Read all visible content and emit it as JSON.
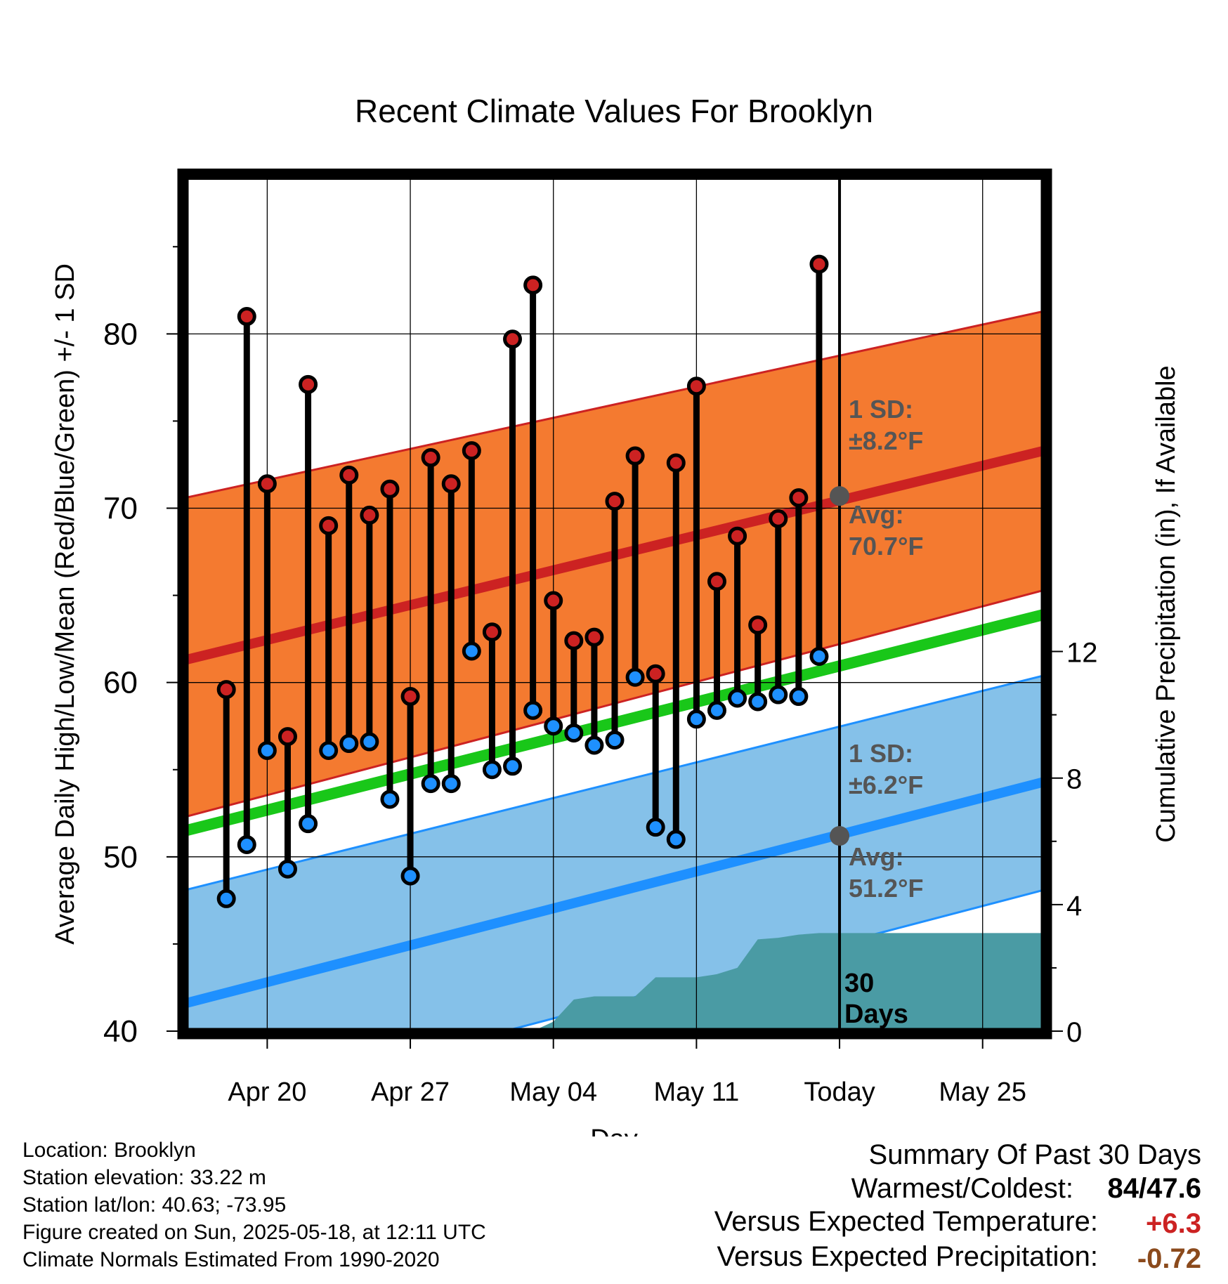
{
  "chart_data": {
    "type": "line",
    "title": "Recent Climate Values For Brooklyn",
    "xlabel": "Day",
    "ylabel": "Average Daily High/Low/Mean (Red/Blue/Green) +/- 1 SD",
    "y2label": "Cumulative Precipitation (in), If Available",
    "xlim": [
      "2025-04-16",
      "2025-05-28"
    ],
    "ylim": [
      40,
      89
    ],
    "y2lim": [
      0,
      27
    ],
    "x_ticks": [
      {
        "date": "2025-04-20",
        "label": "Apr 20"
      },
      {
        "date": "2025-04-27",
        "label": "Apr 27"
      },
      {
        "date": "2025-05-04",
        "label": "May 04"
      },
      {
        "date": "2025-05-11",
        "label": "May 11"
      },
      {
        "date": "2025-05-18",
        "label": "Today"
      },
      {
        "date": "2025-05-25",
        "label": "May 25"
      }
    ],
    "y_ticks": [
      "40",
      "50",
      "60",
      "70",
      "80"
    ],
    "y2_ticks": [
      "0",
      "4",
      "8",
      "12"
    ],
    "grid": true,
    "today": "2025-05-18",
    "today_label": "30\nDays",
    "dates": [
      "2025-04-18",
      "2025-04-19",
      "2025-04-20",
      "2025-04-21",
      "2025-04-22",
      "2025-04-23",
      "2025-04-24",
      "2025-04-25",
      "2025-04-26",
      "2025-04-27",
      "2025-04-28",
      "2025-04-29",
      "2025-04-30",
      "2025-05-01",
      "2025-05-02",
      "2025-05-03",
      "2025-05-04",
      "2025-05-05",
      "2025-05-06",
      "2025-05-07",
      "2025-05-08",
      "2025-05-09",
      "2025-05-10",
      "2025-05-11",
      "2025-05-12",
      "2025-05-13",
      "2025-05-14",
      "2025-05-15",
      "2025-05-16",
      "2025-05-17"
    ],
    "series": [
      {
        "name": "High",
        "color": "#cc2222",
        "values": [
          59.6,
          81.0,
          71.4,
          56.9,
          77.1,
          69.0,
          71.9,
          69.6,
          71.1,
          59.2,
          72.9,
          71.4,
          73.3,
          62.9,
          79.7,
          82.8,
          64.7,
          62.4,
          62.6,
          70.4,
          73.0,
          60.5,
          72.6,
          77.0,
          65.8,
          68.4,
          63.3,
          69.4,
          70.6,
          84.0
        ]
      },
      {
        "name": "Low",
        "color": "#1e90ff",
        "values": [
          47.6,
          50.7,
          56.1,
          49.3,
          51.9,
          56.1,
          56.5,
          56.6,
          53.3,
          48.9,
          54.2,
          54.2,
          61.8,
          55.0,
          55.2,
          58.4,
          57.5,
          57.1,
          56.4,
          56.7,
          60.3,
          51.7,
          51.0,
          57.9,
          58.4,
          59.1,
          58.9,
          59.3,
          59.2,
          61.5
        ]
      }
    ],
    "normals": {
      "start": "2025-04-16",
      "end": "2025-05-28",
      "high_avg": [
        61.3,
        73.3
      ],
      "high_sd_band": [
        [
          52.3,
          70.6
        ],
        [
          65.3,
          81.3
        ]
      ],
      "low_avg": [
        41.6,
        54.3
      ],
      "low_sd_band": [
        [
          35.2,
          48.1
        ],
        [
          48.1,
          60.4
        ]
      ],
      "mean_avg": [
        51.5,
        63.9
      ]
    },
    "cumulative_precip": {
      "dates": [
        "2025-04-16",
        "2025-05-03",
        "2025-05-04",
        "2025-05-05",
        "2025-05-06",
        "2025-05-07",
        "2025-05-08",
        "2025-05-09",
        "2025-05-10",
        "2025-05-11",
        "2025-05-12",
        "2025-05-13",
        "2025-05-14",
        "2025-05-15",
        "2025-05-16",
        "2025-05-17",
        "2025-05-28"
      ],
      "values": [
        0.0,
        0.0,
        0.3,
        1.0,
        1.1,
        1.1,
        1.1,
        1.7,
        1.7,
        1.7,
        1.8,
        2.0,
        2.9,
        2.95,
        3.05,
        3.1,
        3.1
      ]
    },
    "colors": {
      "high_band": "#f47a30",
      "high_line": "#cc2222",
      "low_band": "#85c1e9",
      "low_line": "#1e90ff",
      "mean_line": "#19c719",
      "precip": "#4a9ba4",
      "annotation": "#555555"
    }
  },
  "annotations": {
    "high_sd_label": "1 SD:",
    "high_sd_value": "±8.2°F",
    "high_avg_label": "Avg:",
    "high_avg_value": "70.7°F",
    "high_avg_today": 70.7,
    "low_sd_label": "1 SD:",
    "low_sd_value": "±6.2°F",
    "low_avg_label": "Avg:",
    "low_avg_value": "51.2°F",
    "low_avg_today": 51.2
  },
  "footer": {
    "location": "Location: Brooklyn",
    "elevation": "Station elevation: 33.22 m",
    "latlon": "Station lat/lon: 40.63; -73.95",
    "created": "Figure created on Sun, 2025-05-18, at 12:11 UTC",
    "normals": "Climate Normals Estimated From 1990-2020"
  },
  "summary": {
    "title": "Summary Of Past 30 Days",
    "warm_cold_label": "Warmest/Coldest:",
    "warm_cold_value": "84/47.6",
    "temp_label": "Versus Expected Temperature:",
    "temp_value": "+6.3",
    "temp_color": "#cc2222",
    "precip_label": "Versus Expected Precipitation:",
    "precip_value": "-0.72",
    "precip_color": "#8b4a1c"
  }
}
